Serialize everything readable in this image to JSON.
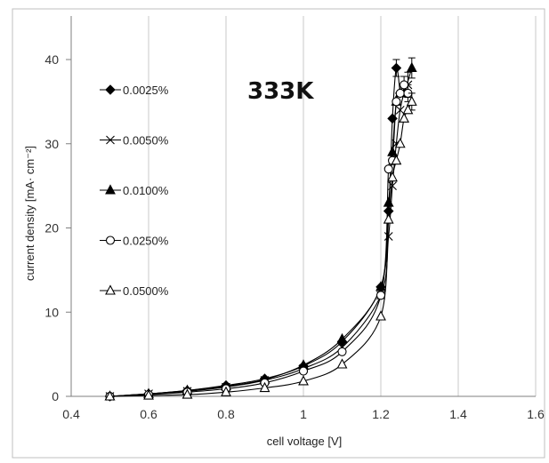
{
  "chart_data": {
    "type": "scatter",
    "annotation": "333K",
    "xlabel": "cell voltage [V]",
    "ylabel": "current density [mA· cm⁻²]",
    "xlim": [
      0.4,
      1.6
    ],
    "ylim": [
      0,
      40
    ],
    "xticks": [
      0.4,
      0.6,
      0.8,
      1,
      1.2,
      1.4,
      1.6
    ],
    "xtick_labels": [
      "0.4",
      "0.6",
      "0.8",
      "1",
      "1.2",
      "1.4",
      "1.6"
    ],
    "yticks": [
      0,
      10,
      20,
      30,
      40
    ],
    "ytick_labels": [
      "0",
      "10",
      "20",
      "30",
      "40"
    ],
    "grid": "vertical",
    "legend_position": "upper-left",
    "series": [
      {
        "name": "0.0025%",
        "marker": "filled-diamond",
        "x": [
          0.5,
          0.6,
          0.7,
          0.8,
          0.9,
          1.0,
          1.1,
          1.2,
          1.22,
          1.23,
          1.24,
          1.25
        ],
        "y": [
          0.0,
          0.3,
          0.7,
          1.3,
          2.1,
          3.6,
          6.5,
          13.0,
          22.0,
          33.0,
          39.0,
          36.0
        ],
        "err": [
          0,
          0,
          0,
          0,
          0,
          0,
          0,
          0,
          0,
          0,
          1.0,
          0
        ]
      },
      {
        "name": "0.0050%",
        "marker": "x",
        "x": [
          0.5,
          0.6,
          0.7,
          0.8,
          0.9,
          1.0,
          1.1,
          1.2,
          1.22,
          1.23,
          1.24,
          1.25,
          1.26,
          1.27
        ],
        "y": [
          0.0,
          0.3,
          0.6,
          1.1,
          1.9,
          3.3,
          5.8,
          12.0,
          19.0,
          25.0,
          30.0,
          34.0,
          36.0,
          37.0
        ],
        "err": [
          0,
          0,
          0,
          0,
          0,
          0,
          0,
          0,
          0,
          0,
          0,
          0,
          0,
          1.5
        ]
      },
      {
        "name": "0.0100%",
        "marker": "filled-triangle",
        "x": [
          0.5,
          0.6,
          0.7,
          0.8,
          0.9,
          1.0,
          1.1,
          1.2,
          1.22,
          1.23,
          1.24,
          1.25,
          1.26,
          1.28
        ],
        "y": [
          0.0,
          0.3,
          0.7,
          1.2,
          2.0,
          3.7,
          6.8,
          13.0,
          23.0,
          29.0,
          35.0,
          36.0,
          36.0,
          39.0
        ],
        "err": [
          0,
          0,
          0,
          0,
          0,
          0,
          0,
          0,
          0,
          0,
          0,
          0,
          0,
          1.2
        ]
      },
      {
        "name": "0.0250%",
        "marker": "open-circle",
        "x": [
          0.5,
          0.6,
          0.7,
          0.8,
          0.9,
          1.0,
          1.1,
          1.2,
          1.22,
          1.23,
          1.24,
          1.25,
          1.26,
          1.27
        ],
        "y": [
          0.0,
          0.2,
          0.5,
          0.9,
          1.6,
          3.0,
          5.3,
          12.0,
          27.0,
          28.0,
          35.0,
          36.0,
          37.0,
          36.0
        ],
        "err": [
          0,
          0,
          0,
          0,
          0,
          0,
          0,
          0,
          0,
          0,
          0,
          0,
          1.0,
          1.0
        ]
      },
      {
        "name": "0.0500%",
        "marker": "open-triangle",
        "x": [
          0.5,
          0.6,
          0.7,
          0.8,
          0.9,
          1.0,
          1.1,
          1.2,
          1.22,
          1.23,
          1.24,
          1.25,
          1.26,
          1.27,
          1.28
        ],
        "y": [
          0.0,
          0.1,
          0.2,
          0.5,
          1.0,
          1.8,
          3.8,
          9.5,
          21.0,
          26.0,
          28.0,
          30.0,
          33.0,
          34.0,
          35.0
        ],
        "err": [
          0,
          0,
          0,
          0,
          0,
          0,
          0,
          0,
          0,
          0,
          0,
          0,
          0,
          0,
          1.0
        ]
      }
    ]
  }
}
